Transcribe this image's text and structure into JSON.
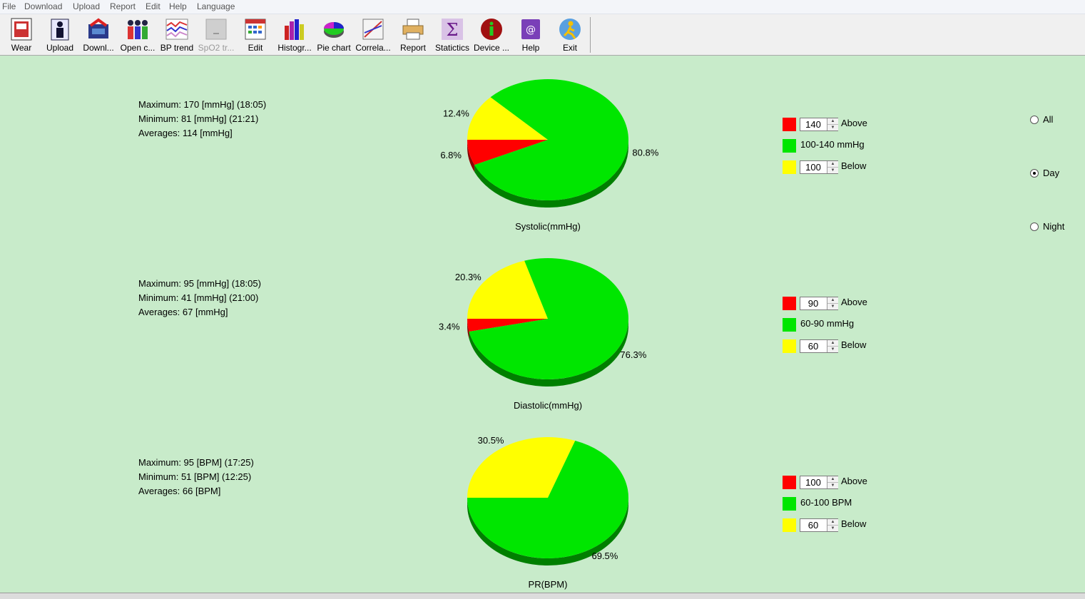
{
  "menu": [
    "File",
    "Download",
    "Upload",
    "Report",
    "Edit",
    "Help",
    "Language"
  ],
  "toolbar": [
    {
      "label": "Wear",
      "icon": "wear-icon",
      "enabled": true
    },
    {
      "label": "Upload",
      "icon": "upload-icon",
      "enabled": true
    },
    {
      "label": "Downl...",
      "icon": "download-icon",
      "enabled": true
    },
    {
      "label": "Open c...",
      "icon": "open-case-icon",
      "enabled": true
    },
    {
      "label": "BP trend",
      "icon": "bp-trend-icon",
      "enabled": true
    },
    {
      "label": "SpO2 tr...",
      "icon": "spo2-trend-icon",
      "enabled": false
    },
    {
      "label": "Edit",
      "icon": "edit-calendar-icon",
      "enabled": true
    },
    {
      "label": "Histogr...",
      "icon": "histogram-icon",
      "enabled": true
    },
    {
      "label": "Pie chart",
      "icon": "pie-chart-icon",
      "enabled": true
    },
    {
      "label": "Correla...",
      "icon": "correlation-icon",
      "enabled": true
    },
    {
      "label": "Report",
      "icon": "printer-icon",
      "enabled": true
    },
    {
      "label": "Statictics",
      "icon": "sigma-icon",
      "enabled": true
    },
    {
      "label": "Device ...",
      "icon": "info-icon",
      "enabled": true
    },
    {
      "label": "Help",
      "icon": "help-book-icon",
      "enabled": true
    },
    {
      "label": "Exit",
      "icon": "exit-runner-icon",
      "enabled": true
    }
  ],
  "panels": [
    {
      "stats": [
        "Maximum: 170 [mmHg] (18:05)",
        "Minimum: 81 [mmHg] (21:21)",
        "Averages: 114 [mmHg]"
      ],
      "legend": {
        "above_value": "140",
        "above_label": "Above",
        "mid_label": "100-140 mmHg",
        "below_value": "100",
        "below_label": "Below"
      }
    },
    {
      "stats": [
        "Maximum: 95 [mmHg] (18:05)",
        "Minimum: 41 [mmHg] (21:00)",
        "Averages: 67 [mmHg]"
      ],
      "legend": {
        "above_value": "90",
        "above_label": "Above",
        "mid_label": "60-90 mmHg",
        "below_value": "60",
        "below_label": "Below"
      }
    },
    {
      "stats": [
        "Maximum: 95 [BPM] (17:25)",
        "Minimum: 51 [BPM] (12:25)",
        "Averages: 66 [BPM]"
      ],
      "legend": {
        "above_value": "100",
        "above_label": "Above",
        "mid_label": "60-100 BPM",
        "below_value": "60",
        "below_label": "Below"
      }
    }
  ],
  "colors": {
    "above": "#ff0000",
    "normal": "#00e600",
    "below": "#ffff00",
    "background": "#c8ebca"
  },
  "chart_data": [
    {
      "type": "pie",
      "title": "Systolic(mmHg)",
      "slices": [
        {
          "label": "6.8%",
          "value": 6.8,
          "color": "#ff0000"
        },
        {
          "label": "12.4%",
          "value": 12.4,
          "color": "#ffff00"
        },
        {
          "label": "80.8%",
          "value": 80.8,
          "color": "#00e600"
        }
      ]
    },
    {
      "type": "pie",
      "title": "Diastolic(mmHg)",
      "slices": [
        {
          "label": "3.4%",
          "value": 3.4,
          "color": "#ff0000"
        },
        {
          "label": "20.3%",
          "value": 20.3,
          "color": "#ffff00"
        },
        {
          "label": "76.3%",
          "value": 76.3,
          "color": "#00e600"
        }
      ]
    },
    {
      "type": "pie",
      "title": "PR(BPM)",
      "slices": [
        {
          "label": "0%",
          "value": 0,
          "color": "#ff0000"
        },
        {
          "label": "30.5%",
          "value": 30.5,
          "color": "#ffff00"
        },
        {
          "label": "69.5%",
          "value": 69.5,
          "color": "#00e600"
        }
      ]
    }
  ],
  "period": {
    "options": [
      "All",
      "Day",
      "Night"
    ],
    "selected": "Day"
  }
}
